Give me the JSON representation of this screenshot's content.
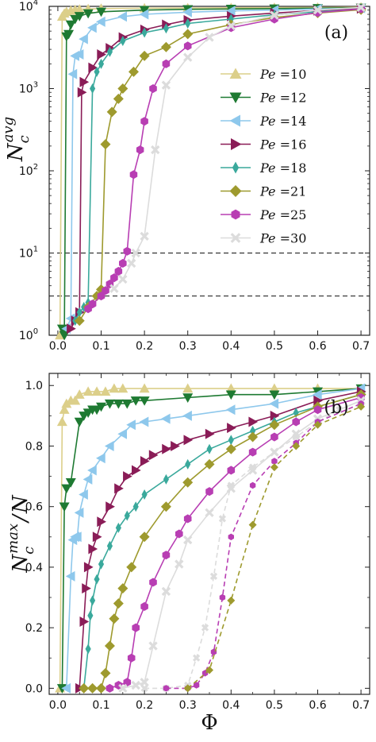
{
  "chart_data": [
    {
      "type": "line",
      "panel_label": "(a)",
      "ylabel": "N_c^avg",
      "yscale": "log",
      "xlim": [
        -0.02,
        0.72
      ],
      "ylim": [
        1,
        10000
      ],
      "xticks": [
        "0.0",
        "0.1",
        "0.2",
        "0.3",
        "0.4",
        "0.5",
        "0.6",
        "0.7"
      ],
      "yticks": [
        "10^0",
        "10^1",
        "10^2",
        "10^3",
        "10^4"
      ],
      "hlines": [
        10,
        3
      ],
      "legend_position": "right",
      "series": [
        {
          "name": "Pe =10",
          "color": "#dccf8a",
          "marker": "triangle-up",
          "x": [
            0.005,
            0.01,
            0.015,
            0.02,
            0.03,
            0.04,
            0.05,
            0.07,
            0.1,
            0.2,
            0.3,
            0.4,
            0.5,
            0.6,
            0.7
          ],
          "y": [
            1.0,
            7500,
            8200,
            8600,
            8900,
            9100,
            9200,
            9300,
            9400,
            9500,
            9550,
            9600,
            9650,
            9700,
            9750
          ]
        },
        {
          "name": "Pe =12",
          "color": "#1e7a32",
          "marker": "triangle-down",
          "x": [
            0.01,
            0.015,
            0.02,
            0.025,
            0.03,
            0.04,
            0.05,
            0.07,
            0.1,
            0.2,
            0.3,
            0.4,
            0.5,
            0.6,
            0.7
          ],
          "y": [
            1.2,
            1.0,
            4300,
            4600,
            6000,
            7000,
            7600,
            8200,
            8600,
            9000,
            9200,
            9300,
            9400,
            9500,
            9600
          ]
        },
        {
          "name": "Pe =14",
          "color": "#8ec8ec",
          "marker": "triangle-left",
          "x": [
            0.02,
            0.03,
            0.035,
            0.04,
            0.05,
            0.06,
            0.08,
            0.1,
            0.15,
            0.2,
            0.3,
            0.4,
            0.5,
            0.6,
            0.7
          ],
          "y": [
            1.2,
            1.6,
            1500,
            2500,
            2600,
            4000,
            5500,
            6500,
            7500,
            8000,
            8500,
            8800,
            9000,
            9300,
            9500
          ]
        },
        {
          "name": "Pe =16",
          "color": "#8a1c57",
          "marker": "triangle-right",
          "x": [
            0.03,
            0.04,
            0.05,
            0.055,
            0.06,
            0.08,
            0.1,
            0.12,
            0.15,
            0.2,
            0.25,
            0.3,
            0.4,
            0.5,
            0.6,
            0.7
          ],
          "y": [
            1.2,
            1.5,
            1.9,
            900,
            1200,
            1800,
            2600,
            3100,
            4200,
            5200,
            6000,
            6800,
            7600,
            8300,
            8900,
            9400
          ]
        },
        {
          "name": "Pe =18",
          "color": "#3aa99c",
          "marker": "thin-diamond",
          "x": [
            0.04,
            0.05,
            0.06,
            0.07,
            0.08,
            0.09,
            0.1,
            0.12,
            0.15,
            0.2,
            0.25,
            0.3,
            0.4,
            0.5,
            0.6,
            0.7
          ],
          "y": [
            1.5,
            1.9,
            2.2,
            2.5,
            1000,
            1600,
            2000,
            2800,
            3800,
            4800,
            5400,
            6200,
            7000,
            7900,
            8600,
            9200
          ]
        },
        {
          "name": "Pe =21",
          "color": "#9e9a2e",
          "marker": "diamond",
          "x": [
            0.05,
            0.07,
            0.09,
            0.1,
            0.11,
            0.125,
            0.14,
            0.15,
            0.175,
            0.2,
            0.25,
            0.3,
            0.4,
            0.5,
            0.6,
            0.7
          ],
          "y": [
            1.5,
            2.2,
            3.0,
            3.6,
            210,
            520,
            750,
            1000,
            1600,
            2500,
            3200,
            4600,
            6000,
            7300,
            8300,
            9100
          ]
        },
        {
          "name": "Pe =25",
          "color": "#b83eb3",
          "marker": "hexagon",
          "x": [
            0.07,
            0.08,
            0.1,
            0.11,
            0.12,
            0.13,
            0.14,
            0.15,
            0.16,
            0.175,
            0.19,
            0.2,
            0.22,
            0.25,
            0.3,
            0.4,
            0.5,
            0.6,
            0.7
          ],
          "y": [
            2.1,
            2.4,
            3.0,
            3.5,
            4.2,
            5.0,
            6.0,
            7.5,
            10.5,
            90,
            180,
            400,
            1000,
            2000,
            3300,
            5500,
            7000,
            8400,
            9300
          ]
        },
        {
          "name": "Pe =30",
          "color": "#dcdcdc",
          "marker": "x",
          "x": [
            0.13,
            0.15,
            0.17,
            0.18,
            0.2,
            0.225,
            0.25,
            0.3,
            0.35,
            0.4,
            0.5,
            0.6,
            0.7
          ],
          "y": [
            3.7,
            4.8,
            7.5,
            10,
            16,
            180,
            1100,
            2400,
            4200,
            5800,
            7800,
            9000,
            9700
          ]
        }
      ]
    },
    {
      "type": "line",
      "panel_label": "(b)",
      "ylabel": "N_c^max / N",
      "xlabel": "Φ",
      "xlim": [
        -0.02,
        0.72
      ],
      "ylim": [
        -0.02,
        1.04
      ],
      "xticks": [
        "0.0",
        "0.1",
        "0.2",
        "0.3",
        "0.4",
        "0.5",
        "0.6",
        "0.7"
      ],
      "yticks": [
        "0.0",
        "0.2",
        "0.4",
        "0.6",
        "0.8",
        "1.0"
      ],
      "series": [
        {
          "name": "Pe =10",
          "color": "#dccf8a",
          "marker": "triangle-up",
          "x": [
            0.005,
            0.01,
            0.015,
            0.02,
            0.03,
            0.04,
            0.05,
            0.07,
            0.09,
            0.11,
            0.13,
            0.15,
            0.2,
            0.3,
            0.4,
            0.5,
            0.6,
            0.7
          ],
          "y": [
            0.0,
            0.88,
            0.92,
            0.94,
            0.95,
            0.95,
            0.97,
            0.98,
            0.98,
            0.98,
            0.99,
            0.99,
            0.99,
            0.99,
            0.99,
            0.99,
            0.99,
            0.99
          ]
        },
        {
          "name": "Pe =12",
          "color": "#1e7a32",
          "marker": "triangle-down",
          "x": [
            0.01,
            0.015,
            0.02,
            0.03,
            0.05,
            0.06,
            0.07,
            0.08,
            0.09,
            0.1,
            0.12,
            0.14,
            0.16,
            0.18,
            0.2,
            0.3,
            0.4,
            0.5,
            0.6,
            0.7
          ],
          "y": [
            0.0,
            0.6,
            0.66,
            0.68,
            0.88,
            0.9,
            0.91,
            0.92,
            0.92,
            0.93,
            0.94,
            0.94,
            0.94,
            0.95,
            0.95,
            0.96,
            0.97,
            0.97,
            0.98,
            0.99
          ]
        },
        {
          "name": "Pe =14",
          "color": "#8ec8ec",
          "marker": "triangle-left",
          "x": [
            0.02,
            0.03,
            0.035,
            0.04,
            0.045,
            0.05,
            0.06,
            0.07,
            0.08,
            0.1,
            0.12,
            0.15,
            0.17,
            0.2,
            0.25,
            0.3,
            0.4,
            0.5,
            0.6,
            0.7
          ],
          "y": [
            0.0,
            0.37,
            0.49,
            0.5,
            0.5,
            0.58,
            0.64,
            0.69,
            0.72,
            0.76,
            0.8,
            0.84,
            0.87,
            0.88,
            0.89,
            0.9,
            0.92,
            0.94,
            0.97,
            0.99
          ]
        },
        {
          "name": "Pe =16",
          "color": "#8a1c57",
          "marker": "triangle-right",
          "x": [
            0.05,
            0.06,
            0.065,
            0.07,
            0.08,
            0.09,
            0.1,
            0.12,
            0.14,
            0.16,
            0.18,
            0.2,
            0.22,
            0.25,
            0.27,
            0.3,
            0.35,
            0.4,
            0.45,
            0.5,
            0.6,
            0.7
          ],
          "y": [
            0.0,
            0.22,
            0.33,
            0.4,
            0.46,
            0.5,
            0.55,
            0.6,
            0.66,
            0.7,
            0.72,
            0.75,
            0.77,
            0.79,
            0.8,
            0.82,
            0.84,
            0.86,
            0.88,
            0.9,
            0.95,
            0.98
          ]
        },
        {
          "name": "Pe =18",
          "color": "#3aa99c",
          "marker": "thin-diamond",
          "x": [
            0.06,
            0.07,
            0.075,
            0.08,
            0.09,
            0.1,
            0.12,
            0.14,
            0.16,
            0.18,
            0.2,
            0.25,
            0.3,
            0.35,
            0.4,
            0.45,
            0.5,
            0.55,
            0.6,
            0.7
          ],
          "y": [
            0.0,
            0.13,
            0.24,
            0.29,
            0.36,
            0.41,
            0.47,
            0.53,
            0.57,
            0.6,
            0.64,
            0.69,
            0.74,
            0.79,
            0.82,
            0.85,
            0.88,
            0.91,
            0.93,
            0.97
          ]
        },
        {
          "name": "Pe =21",
          "color": "#9e9a2e",
          "marker": "diamond",
          "x": [
            0.06,
            0.08,
            0.1,
            0.11,
            0.12,
            0.13,
            0.14,
            0.15,
            0.17,
            0.2,
            0.25,
            0.3,
            0.35,
            0.4,
            0.45,
            0.5,
            0.6,
            0.7
          ],
          "y": [
            0.0,
            0.0,
            0.0,
            0.05,
            0.14,
            0.23,
            0.28,
            0.33,
            0.4,
            0.5,
            0.6,
            0.68,
            0.74,
            0.79,
            0.83,
            0.87,
            0.93,
            0.97
          ]
        },
        {
          "name": "Pe =25",
          "color": "#b83eb3",
          "marker": "hexagon",
          "x": [
            0.12,
            0.14,
            0.16,
            0.17,
            0.18,
            0.2,
            0.22,
            0.25,
            0.28,
            0.3,
            0.35,
            0.4,
            0.45,
            0.5,
            0.55,
            0.6,
            0.7
          ],
          "y": [
            0.0,
            0.01,
            0.02,
            0.1,
            0.2,
            0.27,
            0.35,
            0.44,
            0.51,
            0.56,
            0.65,
            0.72,
            0.78,
            0.83,
            0.88,
            0.92,
            0.96
          ]
        },
        {
          "name": "Pe =30",
          "color": "#dcdcdc",
          "marker": "x",
          "x": [
            0.15,
            0.18,
            0.2,
            0.22,
            0.25,
            0.28,
            0.3,
            0.35,
            0.4,
            0.45,
            0.5,
            0.55,
            0.6,
            0.7
          ],
          "y": [
            0.0,
            0.01,
            0.02,
            0.14,
            0.32,
            0.41,
            0.49,
            0.58,
            0.66,
            0.72,
            0.78,
            0.84,
            0.89,
            0.95
          ]
        },
        {
          "name": "",
          "color": "#dcdcdc",
          "marker": "x",
          "dashed": true,
          "x": [
            0.2,
            0.25,
            0.3,
            0.32,
            0.34,
            0.36,
            0.38,
            0.4,
            0.45,
            0.5,
            0.55,
            0.6,
            0.65,
            0.7
          ],
          "y": [
            0.0,
            0.0,
            0.01,
            0.1,
            0.2,
            0.37,
            0.56,
            0.67,
            0.73,
            0.78,
            0.83,
            0.88,
            0.92,
            0.95
          ]
        },
        {
          "name": "",
          "color": "#b83eb3",
          "marker": "hexagon",
          "dashed": true,
          "x": [
            0.25,
            0.3,
            0.32,
            0.34,
            0.36,
            0.38,
            0.4,
            0.45,
            0.5,
            0.55,
            0.6,
            0.7
          ],
          "y": [
            0.0,
            0.0,
            0.01,
            0.05,
            0.12,
            0.3,
            0.5,
            0.67,
            0.75,
            0.81,
            0.88,
            0.94
          ]
        },
        {
          "name": "",
          "color": "#9e9a2e",
          "marker": "diamond",
          "dashed": true,
          "x": [
            0.3,
            0.35,
            0.4,
            0.45,
            0.5,
            0.55,
            0.6,
            0.7
          ],
          "y": [
            0.0,
            0.06,
            0.29,
            0.54,
            0.73,
            0.8,
            0.87,
            0.93
          ]
        }
      ]
    }
  ]
}
